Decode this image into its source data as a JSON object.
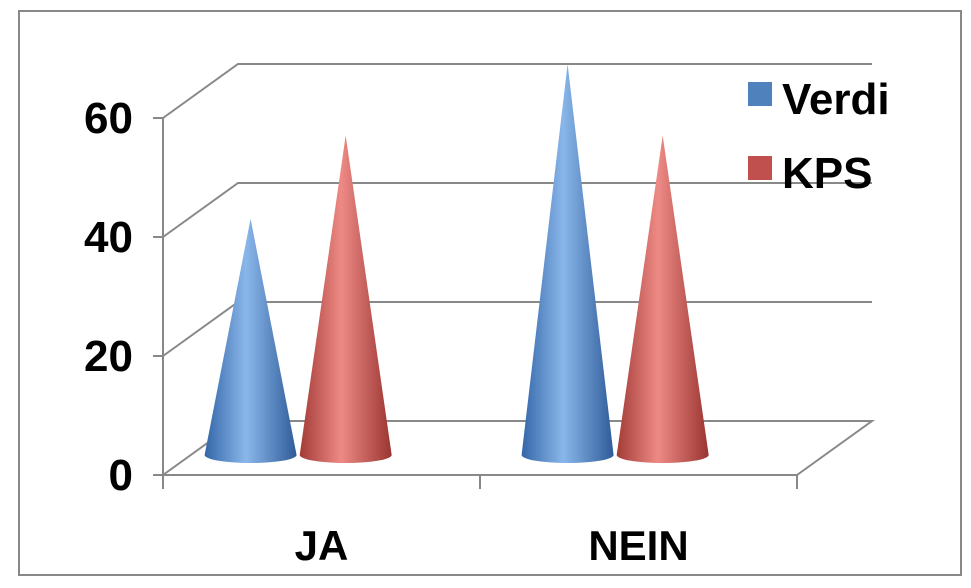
{
  "chart_data": {
    "type": "bar",
    "bar_shape": "cone-3d",
    "categories": [
      "JA",
      "NEIN"
    ],
    "series": [
      {
        "name": "Verdi",
        "values": [
          36,
          62
        ],
        "color": "#4F81BD"
      },
      {
        "name": "KPS",
        "values": [
          50,
          50
        ],
        "color": "#C0504D"
      }
    ],
    "ylim": [
      0,
      60
    ],
    "yticks": [
      "0",
      "20",
      "40",
      "60"
    ],
    "grid": true,
    "legend_position": "top-right"
  }
}
